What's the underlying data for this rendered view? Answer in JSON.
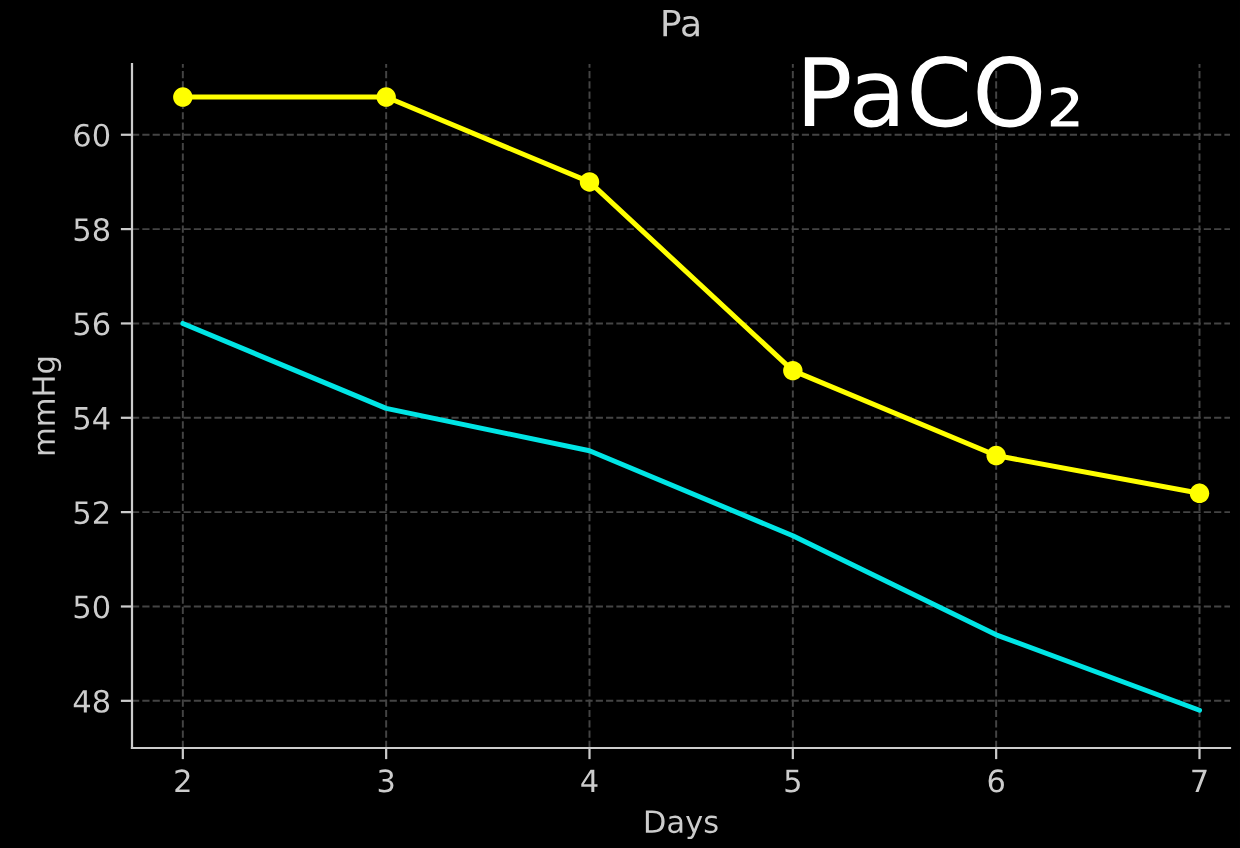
{
  "chart_data": {
    "type": "line",
    "title": "Pa",
    "xlabel": "Days",
    "ylabel": "mmHg",
    "x": [
      2,
      3,
      4,
      5,
      6,
      7
    ],
    "series": [
      {
        "color": "#ffff00",
        "marker": "circle",
        "values": [
          60.8,
          60.8,
          59.0,
          55.0,
          53.2,
          52.4
        ]
      },
      {
        "color": "#00e5e5",
        "marker": "none",
        "values": [
          56.0,
          54.2,
          53.3,
          51.5,
          49.4,
          47.8
        ]
      }
    ],
    "xlim": [
      1.75,
      7.15
    ],
    "xticks": [
      2,
      3,
      4,
      5,
      6,
      7
    ],
    "ylim": [
      47.0,
      61.5
    ],
    "yticks": [
      48,
      50,
      52,
      54,
      56,
      58,
      60
    ],
    "grid": true,
    "line_style": "solid",
    "annotations": [
      "PaCO₂"
    ]
  }
}
